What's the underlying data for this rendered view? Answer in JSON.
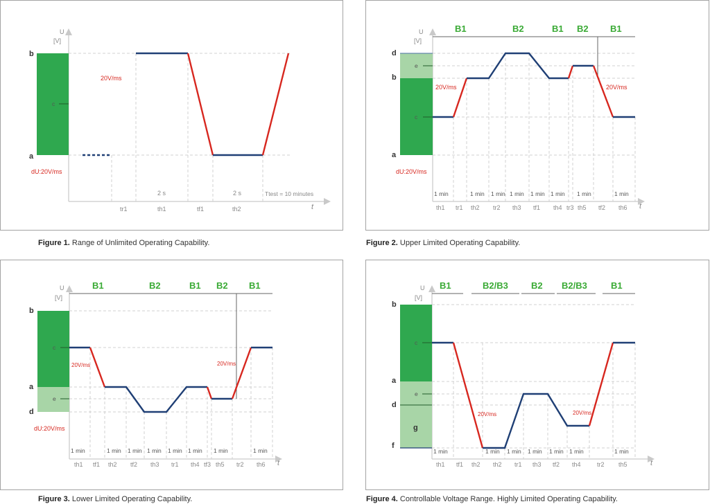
{
  "colors": {
    "dark_green": "#2fa84f",
    "light_green": "#a8d5a7",
    "blue": "#1f3f75",
    "red": "#d7271f",
    "label_green": "#3aaa35"
  },
  "fig1": {
    "axis_u": "U",
    "axis_unit": "[V]",
    "label_b": "b",
    "label_c": "c",
    "label_a": "a",
    "rate": "20V/ms",
    "du": "dU:20V/ms",
    "seg1": "2 s",
    "seg2": "2 s",
    "ttest": "Ttest = 10 minutes",
    "ticks": [
      "tr1",
      "th1",
      "tf1",
      "th2"
    ],
    "t": "t",
    "caption_bold": "Figure 1.",
    "caption_text": " Range of Unlimited Operating Capability."
  },
  "fig2": {
    "axis_u": "U",
    "axis_unit": "[V]",
    "label_d": "d",
    "label_e": "e",
    "label_b": "b",
    "label_c": "c",
    "label_a": "a",
    "rate_left": "20V/ms",
    "rate_right": "20V/ms",
    "du": "dU:20V/ms",
    "zones": [
      "B1",
      "B2",
      "B1",
      "B2",
      "B1"
    ],
    "mins": [
      "1 min",
      "1 min",
      "1 min",
      "1 min",
      "1 min",
      "1 min",
      "1 min",
      "1 min"
    ],
    "ticks": [
      "th1",
      "tr1",
      "th2",
      "tr2",
      "th3",
      "tf1",
      "th4",
      "tr3",
      "th5",
      "tf2",
      "th6"
    ],
    "t": "t",
    "caption_bold": "Figure 2.",
    "caption_text": " Upper Limited Operating Capability."
  },
  "fig3": {
    "axis_u": "U",
    "axis_unit": "[V]",
    "label_b": "b",
    "label_c": "c",
    "label_a": "a",
    "label_e": "e",
    "label_d": "d",
    "rate_left": "20V/ms",
    "rate_right": "20V/ms",
    "du": "dU:20V/ms",
    "zones": [
      "B1",
      "B2",
      "B1",
      "B2",
      "B1"
    ],
    "mins": [
      "1 min",
      "1 min",
      "1 min",
      "1 min",
      "1 min",
      "1 min",
      "1 min",
      "1 min"
    ],
    "ticks": [
      "th1",
      "tf1",
      "th2",
      "tf2",
      "th3",
      "tr1",
      "th4",
      "tf3",
      "th5",
      "tr2",
      "th6"
    ],
    "t": "t",
    "caption_bold": "Figure 3.",
    "caption_text": " Lower Limited Operating Capability."
  },
  "fig4": {
    "axis_u": "U",
    "axis_unit": "[V]",
    "label_b": "b",
    "label_c": "c",
    "label_a": "a",
    "label_e": "e",
    "label_d": "d",
    "label_g": "g",
    "label_f": "f",
    "rate_left": "20V/ms",
    "rate_right": "20V/ms",
    "zones": [
      "B1",
      "B2/B3",
      "B2",
      "B2/B3",
      "B1"
    ],
    "mins": [
      "1 min",
      "1 min",
      "1 min",
      "1 min",
      "1 min",
      "1 min",
      "1 min"
    ],
    "ticks": [
      "th1",
      "tf1",
      "th2",
      "th2",
      "tr1",
      "th3",
      "tf2",
      "th4",
      "tr2",
      "th5"
    ],
    "t": "t",
    "caption_bold": "Figure 4.",
    "caption_text": " Controllable Voltage Range. Highly Limited Operating Capability."
  }
}
